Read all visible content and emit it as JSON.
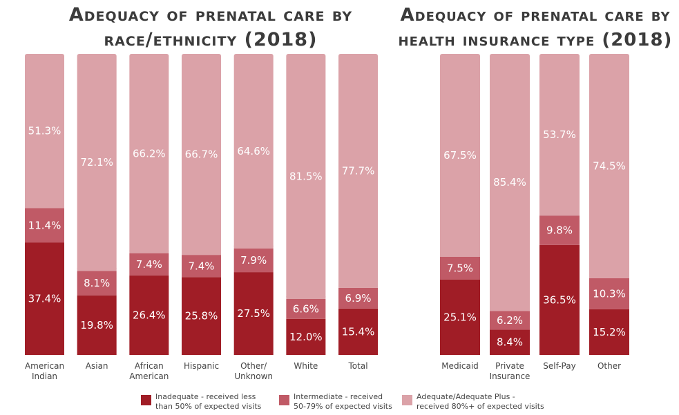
{
  "chart_data": [
    {
      "type": "bar",
      "stacked": true,
      "title": "Adequacy of prenatal care by race/ethnicity (2018)",
      "categories": [
        "American\nIndian",
        "Asian",
        "African\nAmerican",
        "Hispanic",
        "Other/\nUnknown",
        "White",
        "Total"
      ],
      "series": [
        {
          "name": "Inadequate - received less than 50% of expected visits",
          "color": "#a01d26",
          "values": [
            37.4,
            19.8,
            26.4,
            25.8,
            27.5,
            12.0,
            15.4
          ],
          "labels": [
            "37.4%",
            "19.8%",
            "26.4%",
            "25.8%",
            "27.5%",
            "12.0%",
            "15.4%"
          ]
        },
        {
          "name": "Intermediate - received 50-79% of expected visits",
          "color": "#c05a66",
          "values": [
            11.4,
            8.1,
            7.4,
            7.4,
            7.9,
            6.6,
            6.9
          ],
          "labels": [
            "11.4%",
            "8.1%",
            "7.4%",
            "7.4%",
            "7.9%",
            "6.6%",
            "6.9%"
          ]
        },
        {
          "name": "Adequate/Adequate Plus - received 80%+ of expected visits",
          "color": "#dba2a8",
          "values": [
            51.3,
            72.1,
            66.2,
            66.7,
            64.6,
            81.5,
            77.7
          ],
          "labels": [
            "51.3%",
            "72.1%",
            "66.2%",
            "66.7%",
            "64.6%",
            "81.5%",
            "77.7%"
          ]
        }
      ],
      "ylim": [
        0,
        100
      ]
    },
    {
      "type": "bar",
      "stacked": true,
      "title": "Adequacy of prenatal care by health insurance type (2018)",
      "categories": [
        "Medicaid",
        "Private\nInsurance",
        "Self-Pay",
        "Other"
      ],
      "series": [
        {
          "name": "Inadequate - received less than 50% of expected visits",
          "color": "#a01d26",
          "values": [
            25.1,
            8.4,
            36.5,
            15.2
          ],
          "labels": [
            "25.1%",
            "8.4%",
            "36.5%",
            "15.2%"
          ]
        },
        {
          "name": "Intermediate - received 50-79% of expected visits",
          "color": "#c05a66",
          "values": [
            7.5,
            6.2,
            9.8,
            10.3
          ],
          "labels": [
            "7.5%",
            "6.2%",
            "9.8%",
            "10.3%"
          ]
        },
        {
          "name": "Adequate/Adequate Plus - received 80%+ of expected visits",
          "color": "#dba2a8",
          "values": [
            67.5,
            85.4,
            53.7,
            74.5
          ],
          "labels": [
            "67.5%",
            "85.4%",
            "53.7%",
            "74.5%"
          ]
        }
      ],
      "ylim": [
        0,
        100
      ]
    }
  ],
  "titles": {
    "left": "Adequacy of prenatal care by race/ethnicity (2018)",
    "right": "Adequacy of prenatal care by health insurance type (2018)"
  },
  "legend": [
    {
      "label": "Inadequate - received less\nthan 50% of expected visits",
      "color": "#a01d26"
    },
    {
      "label": "Intermediate - received\n50-79% of expected visits",
      "color": "#c05a66"
    },
    {
      "label": "Adequate/Adequate Plus -\nreceived 80%+ of expected visits",
      "color": "#dba2a8"
    }
  ]
}
